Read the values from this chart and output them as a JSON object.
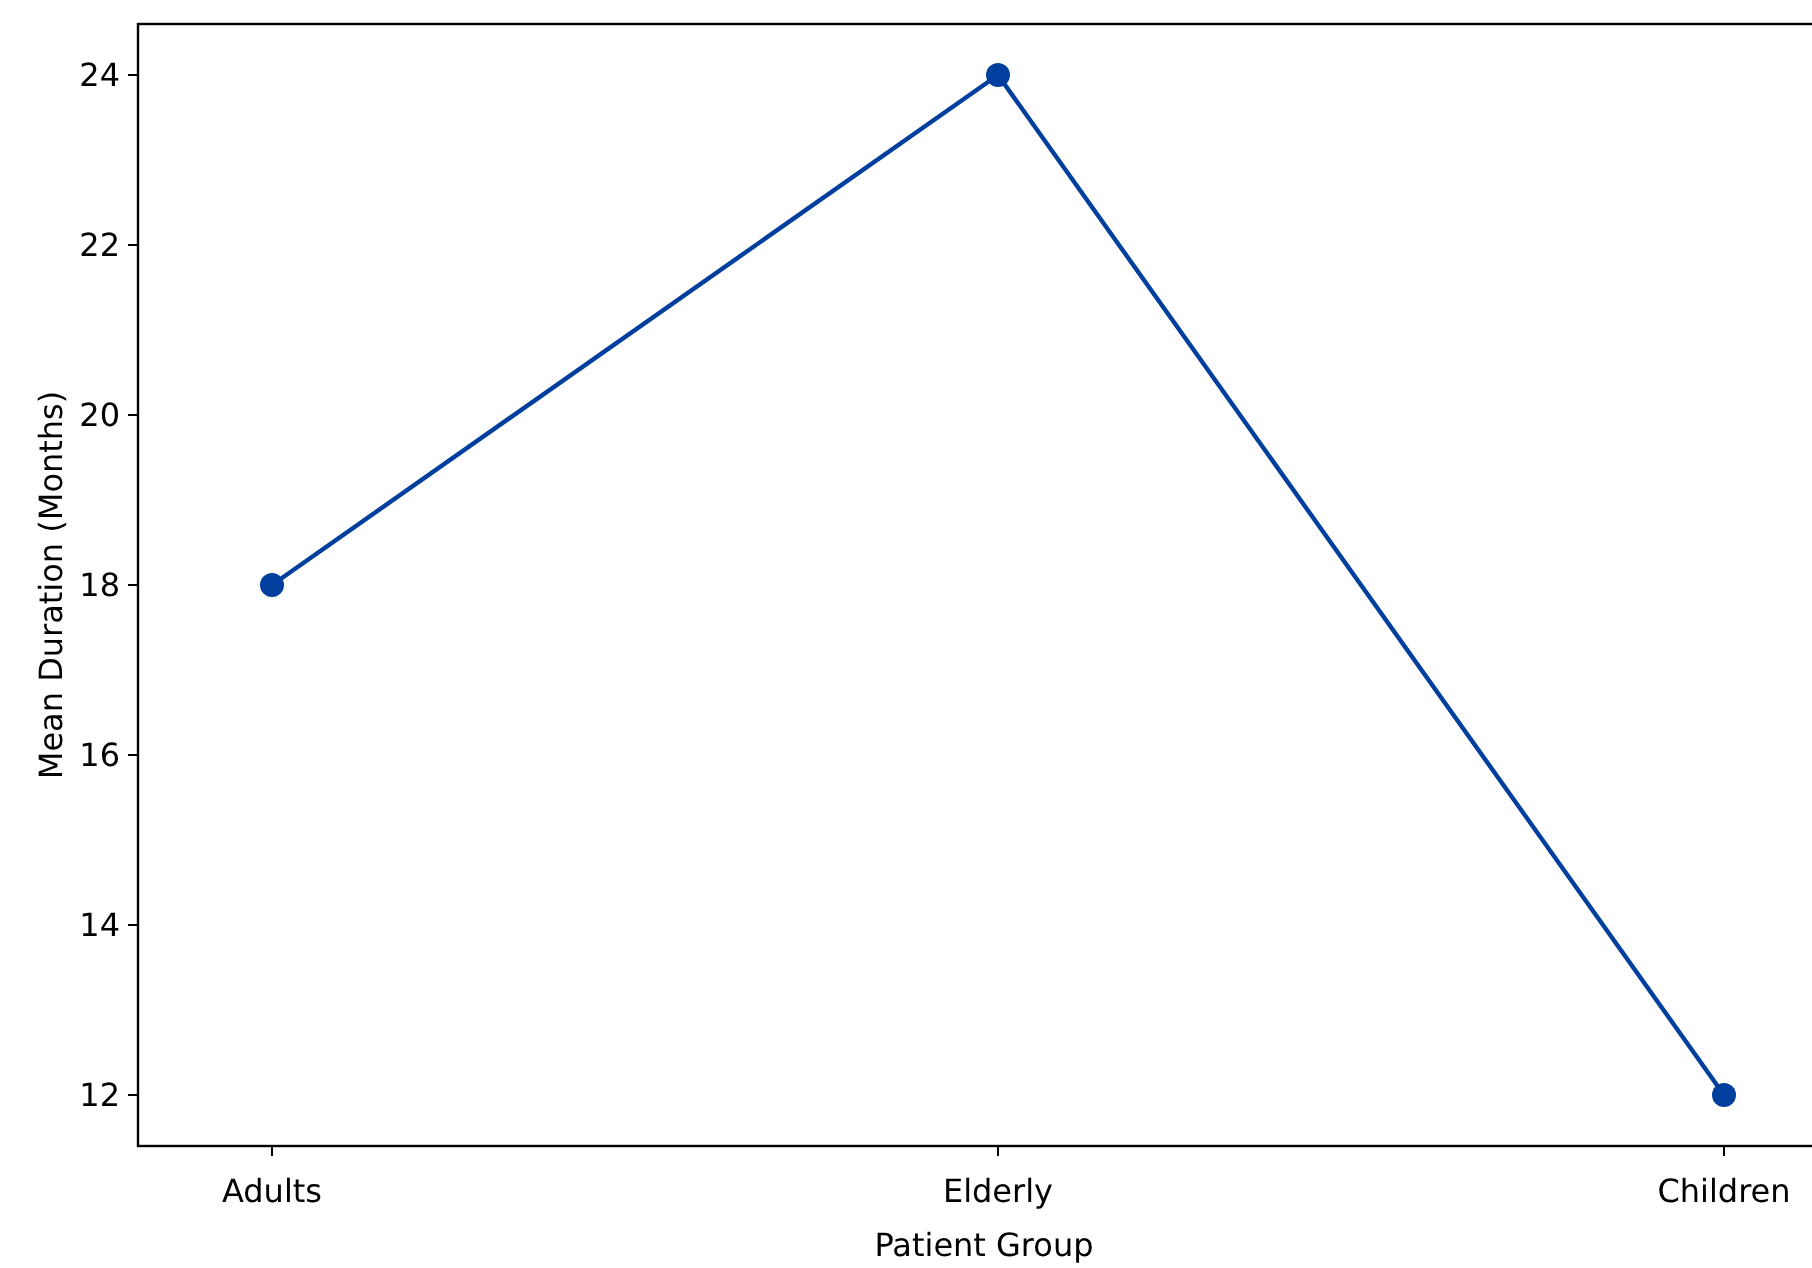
{
  "chart_data": {
    "type": "line",
    "xlabel": "Patient Group",
    "ylabel": "Mean Duration (Months)",
    "categories": [
      "Adults",
      "Elderly",
      "Children"
    ],
    "series": [
      {
        "color": "#003f9e",
        "values": [
          18,
          24,
          12
        ]
      }
    ],
    "ylim": [
      11.4,
      24.6
    ],
    "yticks": [
      12,
      14,
      16,
      18,
      20,
      22,
      24
    ],
    "grid": false,
    "marker": "circle",
    "line_style": "solid"
  }
}
